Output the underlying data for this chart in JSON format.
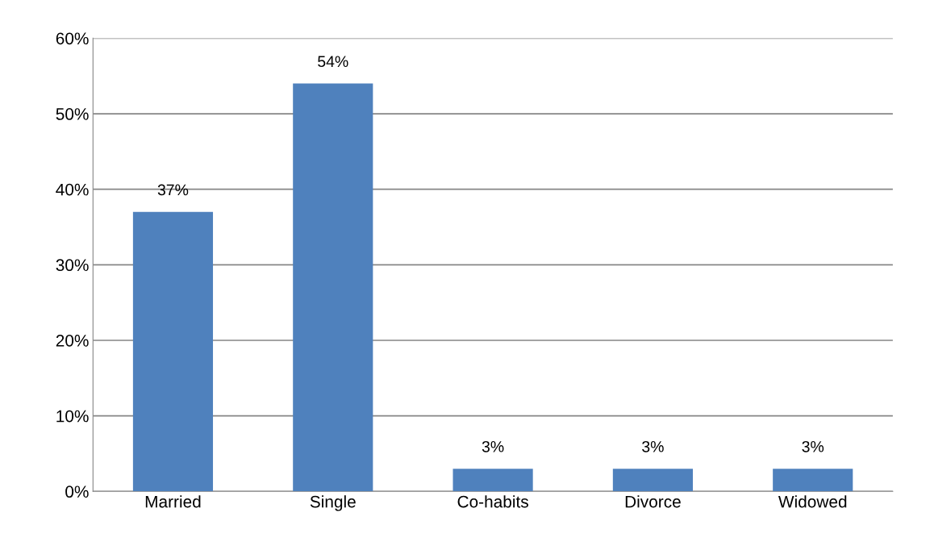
{
  "chart_data": {
    "type": "bar",
    "categories": [
      "Married",
      "Single",
      "Co-habits",
      "Divorce",
      "Widowed"
    ],
    "values": [
      37,
      54,
      3,
      3,
      3
    ],
    "value_labels": [
      "37%",
      "54%",
      "3%",
      "3%",
      "3%"
    ],
    "color": "#4f81bd",
    "ylim": [
      0,
      60
    ],
    "yticks": [
      {
        "value": 0,
        "label": "0%"
      },
      {
        "value": 10,
        "label": "10%"
      },
      {
        "value": 20,
        "label": "20%"
      },
      {
        "value": 30,
        "label": "30%"
      },
      {
        "value": 40,
        "label": "40%"
      },
      {
        "value": 50,
        "label": "50%"
      },
      {
        "value": 60,
        "label": "60%"
      }
    ],
    "grid": "y",
    "legend": false
  }
}
